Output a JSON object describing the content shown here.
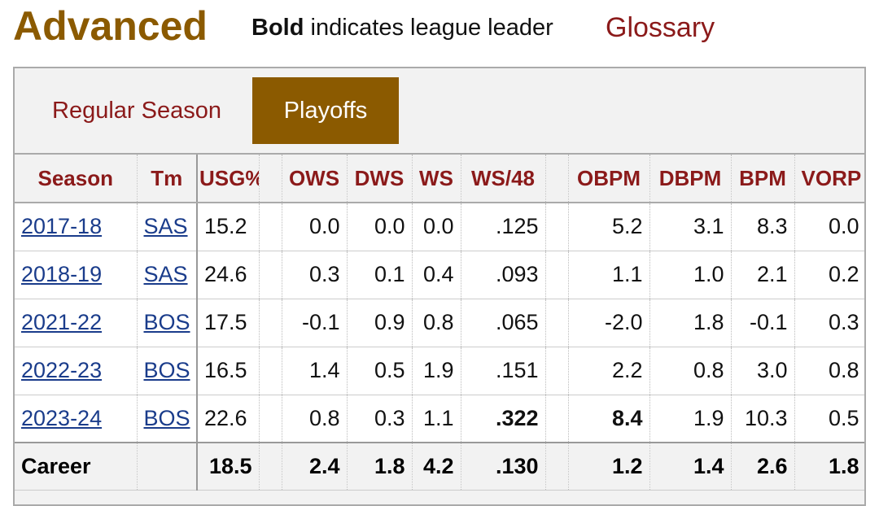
{
  "header": {
    "title": "Advanced",
    "note_bold": "Bold",
    "note_rest": " indicates league leader",
    "glossary_label": "Glossary"
  },
  "tabs": [
    {
      "label": "Regular Season",
      "active": false
    },
    {
      "label": "Playoffs",
      "active": true
    }
  ],
  "table": {
    "columns": [
      "Season",
      "Tm",
      "USG%",
      "OWS",
      "DWS",
      "WS",
      "WS/48",
      "OBPM",
      "DBPM",
      "BPM",
      "VORP"
    ],
    "rows": [
      {
        "season": "2017-18",
        "team": "SAS",
        "usg": "15.2",
        "ows": "0.0",
        "dws": "0.0",
        "ws": "0.0",
        "ws48": ".125",
        "obpm": "5.2",
        "dbpm": "3.1",
        "bpm": "8.3",
        "vorp": "0.0"
      },
      {
        "season": "2018-19",
        "team": "SAS",
        "usg": "24.6",
        "ows": "0.3",
        "dws": "0.1",
        "ws": "0.4",
        "ws48": ".093",
        "obpm": "1.1",
        "dbpm": "1.0",
        "bpm": "2.1",
        "vorp": "0.2"
      },
      {
        "season": "2021-22",
        "team": "BOS",
        "usg": "17.5",
        "ows": "-0.1",
        "dws": "0.9",
        "ws": "0.8",
        "ws48": ".065",
        "obpm": "-2.0",
        "dbpm": "1.8",
        "bpm": "-0.1",
        "vorp": "0.3"
      },
      {
        "season": "2022-23",
        "team": "BOS",
        "usg": "16.5",
        "ows": "1.4",
        "dws": "0.5",
        "ws": "1.9",
        "ws48": ".151",
        "obpm": "2.2",
        "dbpm": "0.8",
        "bpm": "3.0",
        "vorp": "0.8"
      },
      {
        "season": "2023-24",
        "team": "BOS",
        "usg": "22.6",
        "ows": "0.8",
        "dws": "0.3",
        "ws": "1.1",
        "ws48": ".322",
        "obpm": "8.4",
        "dbpm": "1.9",
        "bpm": "10.3",
        "vorp": "0.5"
      }
    ],
    "career": {
      "label": "Career",
      "usg": "18.5",
      "ows": "2.4",
      "dws": "1.8",
      "ws": "4.2",
      "ws48": ".130",
      "obpm": "1.2",
      "dbpm": "1.4",
      "bpm": "2.6",
      "vorp": "1.8"
    }
  },
  "colors": {
    "accent": "#8b5a00",
    "link": "#1a3c8b",
    "header_text": "#8b1a1a"
  }
}
